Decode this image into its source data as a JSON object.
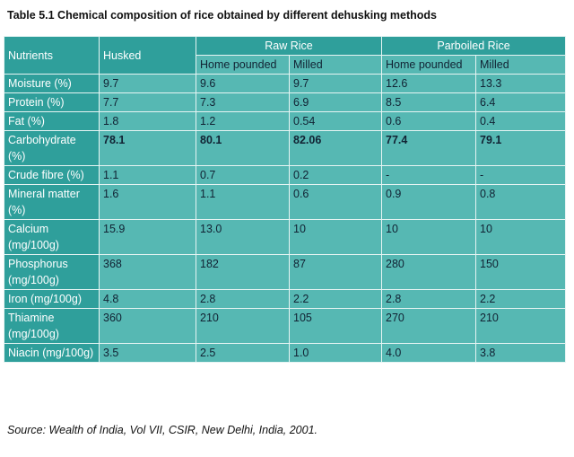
{
  "title": "Table 5.1 Chemical composition of rice obtained by different dehusking methods",
  "table": {
    "header": {
      "nutrients": "Nutrients",
      "husked": "Husked",
      "groups": [
        "Raw Rice",
        "Parboiled Rice"
      ]
    },
    "subheaders": [
      "Home pounded",
      "Milled",
      "Home pounded",
      "Milled"
    ],
    "rows": [
      [
        "Moisture (%)",
        "9.7",
        "9.6",
        "9.7",
        "12.6",
        "13.3"
      ],
      [
        "Protein (%)",
        "7.7",
        "7.3",
        "6.9",
        "8.5",
        "6.4"
      ],
      [
        "Fat (%)",
        "1.8",
        "1.2",
        "0.54",
        "0.6",
        "0.4"
      ],
      [
        "Carbohydrate (%)",
        "78.1",
        "80.1",
        "82.06",
        "77.4",
        "79.1"
      ],
      [
        "Crude fibre (%)",
        "1.1",
        "0.7",
        "0.2",
        "-",
        "-"
      ],
      [
        "Mineral matter (%)",
        "1.6",
        "1.1",
        "0.6",
        "0.9",
        "0.8"
      ],
      [
        "Calcium (mg/100g)",
        "15.9",
        "13.0",
        "10",
        "10",
        "10"
      ],
      [
        "Phosphorus (mg/100g)",
        "368",
        "182",
        "87",
        "280",
        "150"
      ],
      [
        "Iron (mg/100g)",
        "4.8",
        "2.8",
        "2.2",
        "2.8",
        "2.2"
      ],
      [
        "Thiamine (mg/100g)",
        "360",
        "210",
        "105",
        "270",
        "210"
      ],
      [
        "Niacin (mg/100g)",
        "3.5",
        "2.5",
        "1.0",
        "4.0",
        "3.8"
      ]
    ]
  },
  "source": "Source: Wealth of India, Vol VII, CSIR, New Delhi, India, 2001."
}
